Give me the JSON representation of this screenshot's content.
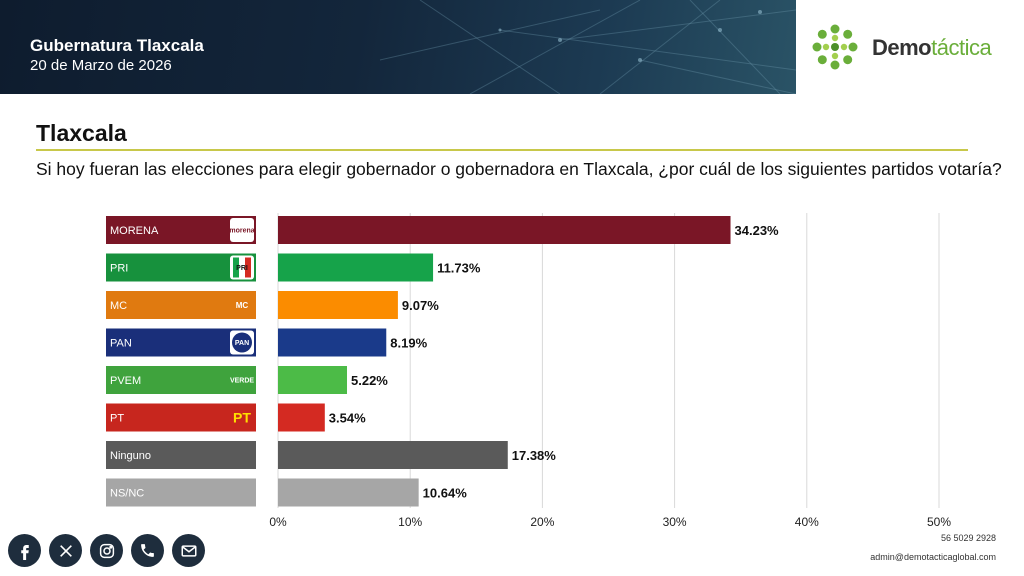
{
  "header": {
    "title": "Gubernatura Tlaxcala",
    "date": "20 de Marzo de 2026"
  },
  "logo": {
    "part1": "Demo",
    "part2": "táctica"
  },
  "page": {
    "title": "Tlaxcala",
    "question": "Si hoy fueran las elecciones para elegir gobernador o gobernadora en Tlaxcala, ¿por cuál de los siguientes partidos votaría?"
  },
  "chart_data": {
    "type": "bar",
    "orientation": "horizontal",
    "categories": [
      "MORENA",
      "PRI",
      "MC",
      "PAN",
      "PVEM",
      "PT",
      "Ninguno",
      "NS/NC"
    ],
    "values": [
      34.23,
      11.73,
      9.07,
      8.19,
      5.22,
      3.54,
      17.38,
      10.64
    ],
    "value_labels": [
      "34.23%",
      "11.73%",
      "9.07%",
      "8.19%",
      "5.22%",
      "3.54%",
      "17.38%",
      "10.64%"
    ],
    "colors": [
      "#7a1626",
      "#16a34a",
      "#fb8c00",
      "#1a3a8a",
      "#4cbb47",
      "#d42a22",
      "#5a5a5a",
      "#a6a6a6"
    ],
    "label_colors": [
      "#7a1626",
      "#17913d",
      "#e07a10",
      "#1a2f7a",
      "#3fa33d",
      "#c7261e",
      "#5a5a5a",
      "#a6a6a6"
    ],
    "party_logos": [
      "morena",
      "PRI",
      "MC",
      "PAN",
      "VERDE",
      "PT",
      "",
      ""
    ],
    "xlim": [
      0,
      50
    ],
    "xticks": [
      "0%",
      "10%",
      "20%",
      "30%",
      "40%",
      "50%"
    ],
    "grid": true
  },
  "footer": {
    "phone": "56 5029 2928",
    "email": "admin@demotacticaglobal.com",
    "social_icons": [
      "facebook-icon",
      "x-icon",
      "instagram-icon",
      "phone-icon",
      "email-icon"
    ]
  }
}
